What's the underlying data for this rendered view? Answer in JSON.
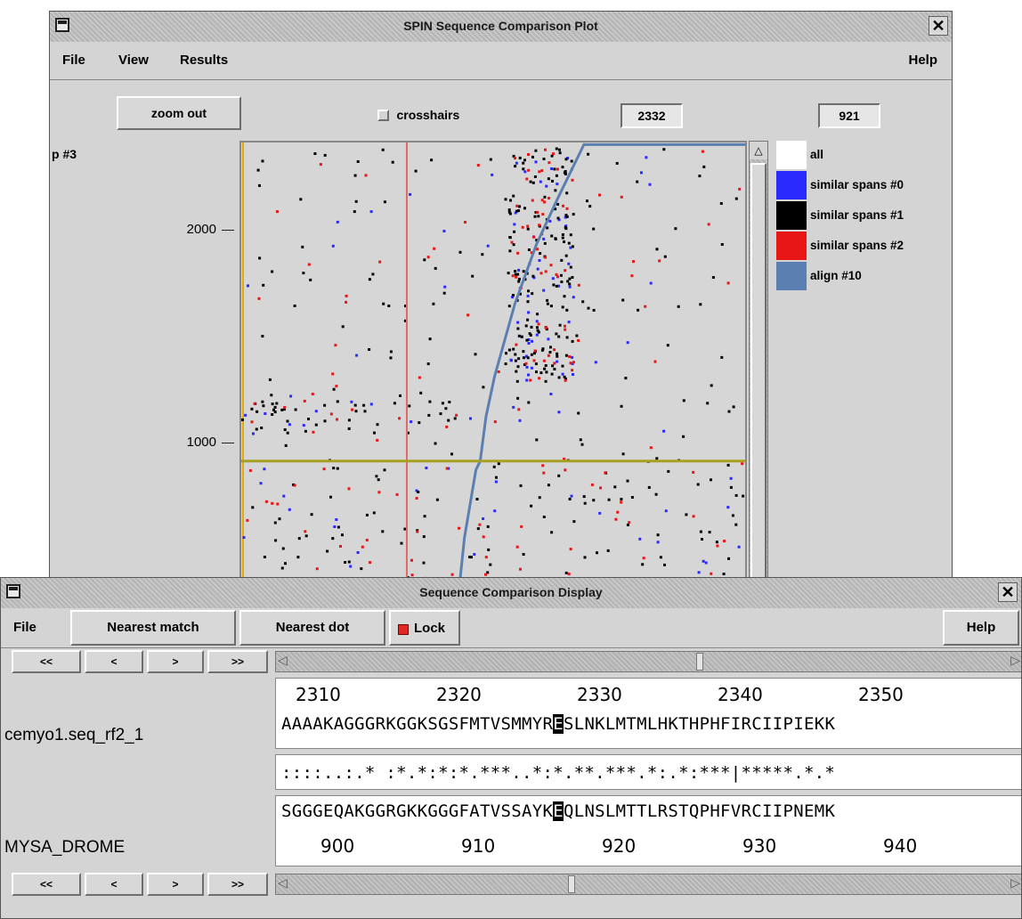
{
  "plot_window": {
    "title": "SPIN Sequence Comparison Plot",
    "menu": [
      "File",
      "View",
      "Results"
    ],
    "help_label": "Help",
    "zoom_out_label": "zoom out",
    "crosshairs_label": "crosshairs",
    "crosshairs_checked": false,
    "x_value": "2332",
    "y_value": "921",
    "panel_label": "p #3",
    "legend": [
      {
        "label": "all",
        "color": "#ffffff"
      },
      {
        "label": "similar spans #0",
        "color": "#2a2aff"
      },
      {
        "label": "similar spans #1",
        "color": "#000000"
      },
      {
        "label": "similar spans #2",
        "color": "#e81616"
      },
      {
        "label": "align #10",
        "color": "#5b7fb0"
      }
    ]
  },
  "chart_data": {
    "type": "scatter",
    "title": "",
    "xlabel": "",
    "ylabel": "",
    "y_ticks": [
      "2000",
      "1000"
    ],
    "ylim": [
      300,
      2420
    ],
    "xlim": [
      2000,
      2700
    ],
    "crosshair": {
      "x": 2332,
      "y": 921
    },
    "series": [
      {
        "name": "align #10",
        "type": "line",
        "color": "#5b7fb0",
        "points": [
          [
            2302,
            300
          ],
          [
            2310,
            560
          ],
          [
            2326,
            880
          ],
          [
            2332,
            921
          ],
          [
            2340,
            1130
          ],
          [
            2352,
            1320
          ],
          [
            2380,
            1660
          ],
          [
            2410,
            1940
          ],
          [
            2440,
            2160
          ],
          [
            2476,
            2410
          ],
          [
            2700,
            2410
          ]
        ]
      },
      {
        "name": "similar spans #0",
        "type": "scatter",
        "color": "#2a2aff",
        "count": 120
      },
      {
        "name": "similar spans #1",
        "type": "scatter",
        "color": "#000000",
        "count": 420
      },
      {
        "name": "similar spans #2",
        "type": "scatter",
        "color": "#e81616",
        "count": 160
      }
    ]
  },
  "seq_window": {
    "title": "Sequence Comparison Display",
    "menu_file": "File",
    "nearest_match_label": "Nearest match",
    "nearest_dot_label": "Nearest dot",
    "lock_label": "Lock",
    "lock_checked": true,
    "help_label": "Help",
    "nav_buttons": [
      "<<",
      "<",
      ">",
      ">>"
    ],
    "seq1_name": "cemyo1.seq_rf2_1",
    "seq1_ticks": [
      "2310",
      "2320",
      "2330",
      "2340",
      "2350"
    ],
    "seq1_pre": "AAAAKAGGGRKGGKSGSFMTVSMMYR",
    "seq1_hl": "E",
    "seq1_post": "SLNKLMTMLHKTHPHFIRCIIPIEKK",
    "match_line": "::::..:.* :*.*:*:*.***..*:*.**.***.*:.*:***|*****.*.*",
    "seq2_name": "MYSA_DROME",
    "seq2_pre": "SGGGEQAKGGRGKKGGGFATVSSAYK",
    "seq2_hl": "E",
    "seq2_post": "QLNSLMTTLRSTQPHFVRCIIPNEMK",
    "seq2_ticks": [
      "900",
      "910",
      "920",
      "930",
      "940"
    ]
  }
}
